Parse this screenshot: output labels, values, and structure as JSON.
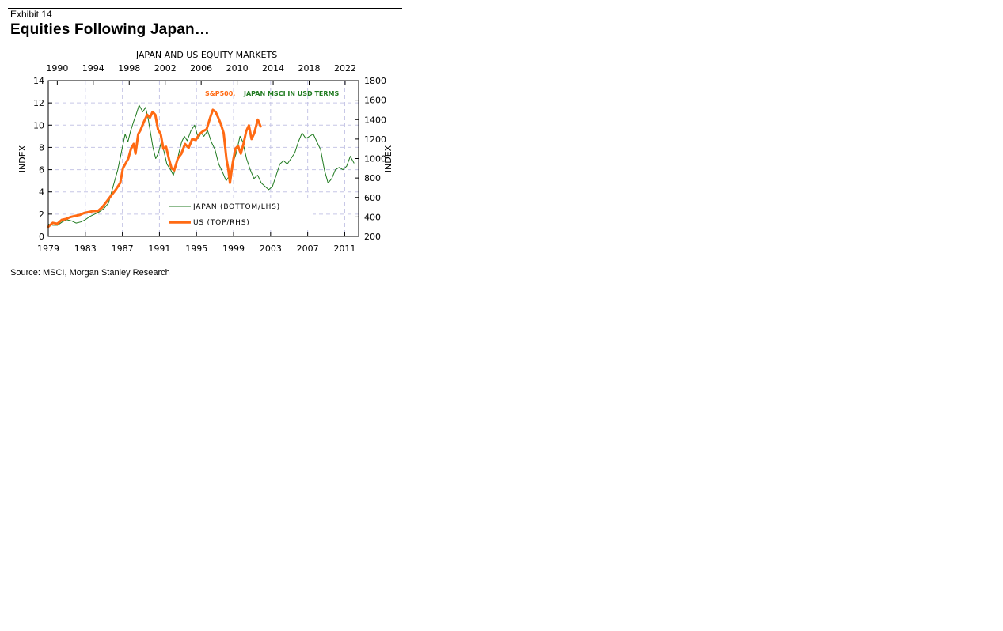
{
  "exhibit": {
    "label": "Exhibit 14",
    "title": "Equities Following Japan…",
    "source": "Source: MSCI, Morgan Stanley Research"
  },
  "chart_data": {
    "type": "line",
    "title": "JAPAN AND US EQUITY MARKETS",
    "annotation": {
      "us_text": "S&P500.",
      "japan_text": "JAPAN MSCI IN USD TERMS",
      "us_color": "#ff6a13",
      "japan_color": "#1f7a1f"
    },
    "left_axis": {
      "label": "INDEX",
      "lim": [
        0,
        14
      ],
      "ticks": [
        0,
        2,
        4,
        6,
        8,
        10,
        12,
        14
      ]
    },
    "right_axis": {
      "label": "INDEX",
      "lim": [
        200,
        1800
      ],
      "ticks": [
        200,
        400,
        600,
        800,
        1000,
        1200,
        1400,
        1600,
        1800
      ]
    },
    "bottom_axis": {
      "lim": [
        1979,
        2012.5
      ],
      "ticks": [
        "1979",
        "1983",
        "1987",
        "1991",
        "1995",
        "1999",
        "2003",
        "2007",
        "2011"
      ]
    },
    "top_axis": {
      "lim": [
        1989,
        2023.5
      ],
      "ticks": [
        "1990",
        "1994",
        "1998",
        "2002",
        "2006",
        "2010",
        "2014",
        "2018",
        "2022"
      ]
    },
    "grid": true,
    "legend": [
      {
        "label": "JAPAN (BOTTOM/LHS)",
        "color": "#1f7a1f"
      },
      {
        "label": "US (TOP/RHS)",
        "color": "#ff6a13"
      }
    ],
    "series": [
      {
        "name": "JAPAN (BOTTOM/LHS)",
        "axis": "left-bottom",
        "color": "#1f7a1f",
        "x": [
          1979.0,
          1979.5,
          1980.0,
          1980.5,
          1981.0,
          1981.5,
          1982.0,
          1982.5,
          1983.0,
          1983.5,
          1984.0,
          1984.5,
          1985.0,
          1985.5,
          1986.0,
          1986.5,
          1987.0,
          1987.3,
          1987.6,
          1987.9,
          1988.2,
          1988.5,
          1988.8,
          1989.2,
          1989.5,
          1989.8,
          1990.0,
          1990.3,
          1990.6,
          1990.9,
          1991.2,
          1991.5,
          1991.8,
          1992.2,
          1992.5,
          1992.8,
          1993.1,
          1993.4,
          1993.7,
          1994.0,
          1994.4,
          1994.8,
          1995.2,
          1995.5,
          1995.8,
          1996.2,
          1996.6,
          1997.0,
          1997.4,
          1997.8,
          1998.2,
          1998.6,
          1998.9,
          1999.3,
          1999.7,
          2000.0,
          2000.4,
          2000.8,
          2001.2,
          2001.6,
          2002.0,
          2002.4,
          2002.8,
          2003.2,
          2003.6,
          2004.0,
          2004.4,
          2004.8,
          2005.2,
          2005.6,
          2006.0,
          2006.4,
          2006.8,
          2007.2,
          2007.6,
          2008.0,
          2008.4,
          2008.8,
          2009.2,
          2009.6,
          2010.0,
          2010.4,
          2010.8,
          2011.2,
          2011.6,
          2012.0
        ],
        "values": [
          1.1,
          1.0,
          1.0,
          1.3,
          1.5,
          1.4,
          1.2,
          1.3,
          1.5,
          1.8,
          2.0,
          2.2,
          2.5,
          3.0,
          4.5,
          6.0,
          8.0,
          9.2,
          8.5,
          9.5,
          10.3,
          11.0,
          11.8,
          11.2,
          11.6,
          10.5,
          9.5,
          8.0,
          7.0,
          7.5,
          8.5,
          7.6,
          6.5,
          6.0,
          5.5,
          6.3,
          7.5,
          8.5,
          9.0,
          8.6,
          9.5,
          10.0,
          8.8,
          9.3,
          9.0,
          9.5,
          8.5,
          7.8,
          6.5,
          5.8,
          5.0,
          5.5,
          6.5,
          7.5,
          9.0,
          8.5,
          7.0,
          6.0,
          5.2,
          5.5,
          4.8,
          4.5,
          4.2,
          4.5,
          5.5,
          6.5,
          6.8,
          6.5,
          7.0,
          7.5,
          8.5,
          9.3,
          8.8,
          9.0,
          9.2,
          8.5,
          7.8,
          6.0,
          4.8,
          5.2,
          6.0,
          6.2,
          6.0,
          6.3,
          7.2,
          6.6
        ]
      },
      {
        "name": "US (TOP/RHS)",
        "axis": "right-top",
        "color": "#ff6a13",
        "x": [
          1989.0,
          1989.5,
          1990.0,
          1990.5,
          1991.0,
          1991.5,
          1992.0,
          1992.5,
          1993.0,
          1993.5,
          1994.0,
          1994.5,
          1995.0,
          1995.5,
          1996.0,
          1996.5,
          1997.0,
          1997.3,
          1997.6,
          1997.9,
          1998.2,
          1998.5,
          1998.7,
          1999.0,
          1999.3,
          1999.6,
          2000.0,
          2000.3,
          2000.6,
          2000.9,
          2001.2,
          2001.5,
          2001.8,
          2002.1,
          2002.4,
          2002.7,
          2003.0,
          2003.4,
          2003.8,
          2004.2,
          2004.6,
          2005.0,
          2005.4,
          2005.8,
          2006.2,
          2006.6,
          2007.0,
          2007.3,
          2007.6,
          2007.9,
          2008.2,
          2008.5,
          2008.8,
          2009.0,
          2009.2,
          2009.5,
          2009.8,
          2010.1,
          2010.4,
          2010.7,
          2011.0,
          2011.3,
          2011.6,
          2011.9,
          2012.3,
          2012.6
        ],
        "values": [
          300,
          340,
          330,
          370,
          380,
          400,
          410,
          420,
          440,
          450,
          460,
          460,
          500,
          560,
          620,
          680,
          750,
          900,
          950,
          1000,
          1100,
          1150,
          1050,
          1250,
          1300,
          1370,
          1450,
          1420,
          1480,
          1450,
          1300,
          1250,
          1100,
          1120,
          1000,
          900,
          880,
          1000,
          1050,
          1150,
          1110,
          1200,
          1190,
          1250,
          1280,
          1300,
          1420,
          1500,
          1480,
          1420,
          1350,
          1260,
          1000,
          900,
          750,
          950,
          1100,
          1130,
          1050,
          1150,
          1280,
          1340,
          1200,
          1260,
          1400,
          1330
        ]
      }
    ]
  }
}
